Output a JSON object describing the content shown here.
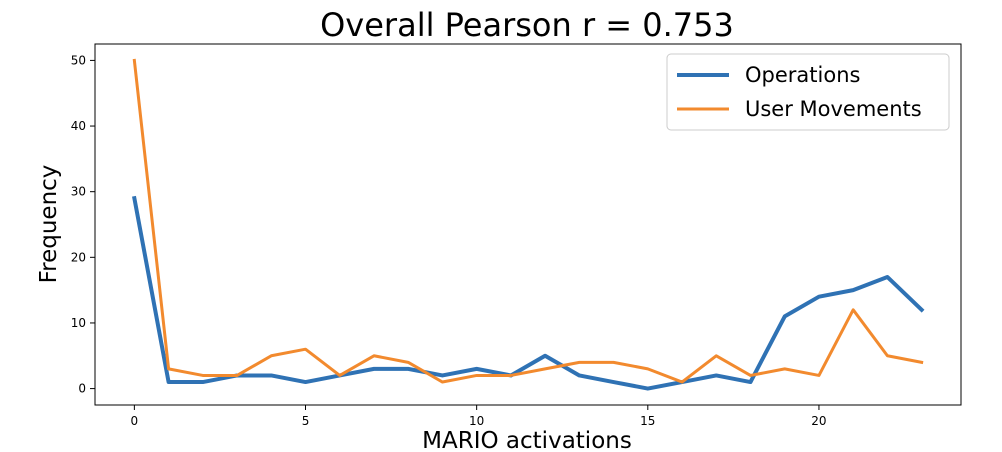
{
  "chart_data": {
    "type": "line",
    "title": "Overall Pearson r = 0.753",
    "xlabel": "MARIO activations",
    "ylabel": "Frequency",
    "xlim": [
      -1.15,
      24.15
    ],
    "ylim": [
      -2.5,
      52.5
    ],
    "xticks": [
      0,
      5,
      10,
      15,
      20
    ],
    "yticks": [
      0,
      10,
      20,
      30,
      40,
      50
    ],
    "grid": false,
    "legend_position": "top-right",
    "x": [
      0,
      1,
      2,
      3,
      4,
      5,
      6,
      7,
      8,
      9,
      10,
      11,
      12,
      13,
      14,
      15,
      16,
      17,
      18,
      19,
      20,
      21,
      22,
      23
    ],
    "series": [
      {
        "name": "Operations",
        "color": "#2f72b4",
        "values": [
          29,
          1,
          1,
          2,
          2,
          1,
          2,
          3,
          3,
          2,
          3,
          2,
          5,
          2,
          1,
          0,
          1,
          2,
          1,
          11,
          14,
          15,
          17,
          12
        ]
      },
      {
        "name": "User Movements",
        "color": "#f28a2e",
        "values": [
          50,
          3,
          2,
          2,
          5,
          6,
          2,
          5,
          4,
          1,
          2,
          2,
          3,
          4,
          4,
          3,
          1,
          5,
          2,
          3,
          2,
          12,
          5,
          4
        ]
      }
    ]
  }
}
